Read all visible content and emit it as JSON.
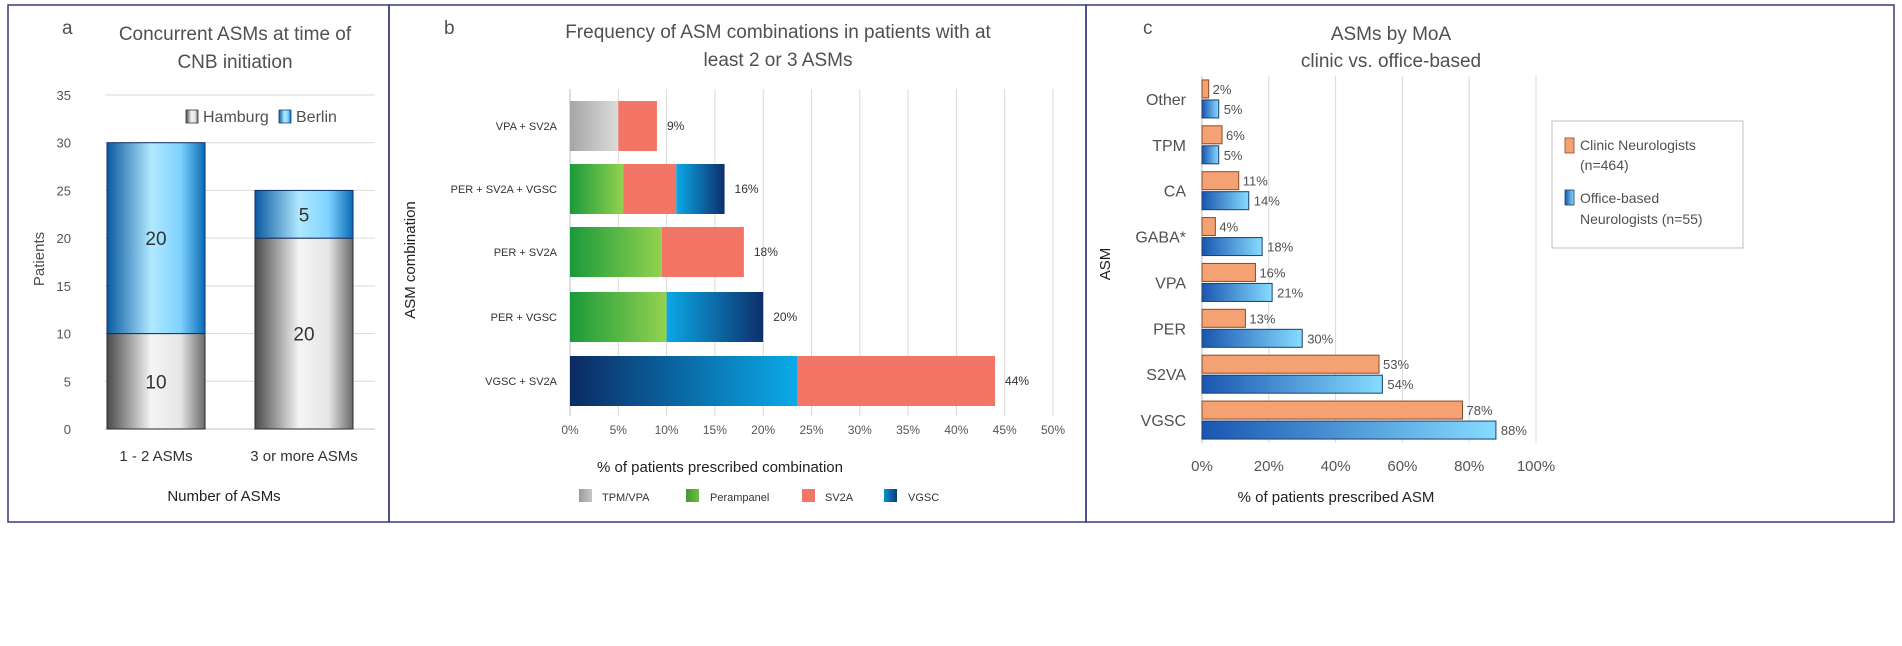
{
  "colors": {
    "frame": "#3a3a7a",
    "grid": "#d9d9d9",
    "axis_text": "#555555",
    "title_text": "#505050",
    "hamburg_dark": "#5a5a5a",
    "hamburg_light": "#f2f2f2",
    "berlin_dark": "#0a5aa0",
    "berlin_light": "#a8e4ff",
    "vgsc_dark": "#0d2f6b",
    "vgsc_light": "#0aa8e6",
    "perampanel_dark": "#1e9a3c",
    "perampanel_light": "#8fcf4f",
    "sv2a": "#f27565",
    "tpmvpa": "#b5b5b5",
    "clinic": "#f4a274",
    "clinic_edge": "#8a4a22",
    "office_dark": "#1a56b0",
    "office_light": "#7fd7ff"
  },
  "panels": {
    "a": {
      "letter": "a"
    },
    "b": {
      "letter": "b"
    },
    "c": {
      "letter": "c"
    }
  },
  "chart_data": [
    {
      "panel": "a",
      "type": "bar",
      "stacked": true,
      "title_lines": [
        "Concurrent ASMs at time of",
        "CNB initiation"
      ],
      "xlabel": "Number of ASMs",
      "ylabel": "Patients",
      "categories": [
        "1 - 2 ASMs",
        "3 or more ASMs"
      ],
      "series": [
        {
          "name": "Hamburg",
          "values": [
            10,
            20
          ],
          "labels": [
            "10",
            "20"
          ]
        },
        {
          "name": "Berlin",
          "values": [
            20,
            5
          ],
          "labels": [
            "20",
            "5"
          ]
        }
      ],
      "ylim": [
        0,
        35
      ],
      "yticks": [
        "0",
        "5",
        "10",
        "15",
        "20",
        "25",
        "30",
        "35"
      ],
      "legend": [
        "Hamburg",
        "Berlin"
      ],
      "grid": true
    },
    {
      "panel": "b",
      "type": "bar",
      "orientation": "horizontal",
      "stacked": true,
      "title_lines": [
        "Frequency of ASM combinations in patients with at",
        "least 2 or 3 ASMs"
      ],
      "xlabel": "% of patients prescribed combination",
      "ylabel": "ASM combination",
      "categories": [
        "VPA + SV2A",
        "PER + SV2A + VGSC",
        "PER + SV2A",
        "PER + VGSC",
        "VGSC + SV2A"
      ],
      "totals": [
        9,
        16,
        18,
        20,
        44
      ],
      "total_labels": [
        "9%",
        "16%",
        "18%",
        "20%",
        "44%"
      ],
      "segments": [
        [
          {
            "drug": "TPM/VPA",
            "value": 5
          },
          {
            "drug": "SV2A",
            "value": 4
          }
        ],
        [
          {
            "drug": "Perampanel",
            "value": 5.5
          },
          {
            "drug": "SV2A",
            "value": 5.5
          },
          {
            "drug": "VGSC",
            "value": 5
          }
        ],
        [
          {
            "drug": "Perampanel",
            "value": 9.5
          },
          {
            "drug": "SV2A",
            "value": 8.5
          }
        ],
        [
          {
            "drug": "Perampanel",
            "value": 10
          },
          {
            "drug": "VGSC",
            "value": 10
          }
        ],
        [
          {
            "drug": "VGSC",
            "value": 23.5
          },
          {
            "drug": "SV2A",
            "value": 20.5
          }
        ]
      ],
      "xlim": [
        0,
        50
      ],
      "xticks": [
        "0%",
        "5%",
        "10%",
        "15%",
        "20%",
        "25%",
        "30%",
        "35%",
        "40%",
        "45%",
        "50%"
      ],
      "legend": [
        "TPM/VPA",
        "Perampanel",
        "SV2A",
        "VGSC"
      ],
      "grid": true
    },
    {
      "panel": "c",
      "type": "bar",
      "orientation": "horizontal",
      "grouped": true,
      "title_lines": [
        "ASMs by MoA",
        "clinic vs. office-based"
      ],
      "xlabel": "% of patients prescribed ASM",
      "ylabel": "ASM",
      "categories": [
        "Other",
        "TPM",
        "CA",
        "GABA*",
        "VPA",
        "PER",
        "S2VA",
        "VGSC"
      ],
      "series": [
        {
          "name": "Clinic Neurologists (n=464)",
          "legend_lines": [
            "Clinic Neurologists",
            "(n=464)"
          ],
          "values": [
            2,
            6,
            11,
            4,
            16,
            13,
            53,
            78
          ],
          "labels": [
            "2%",
            "6%",
            "11%",
            "4%",
            "16%",
            "13%",
            "53%",
            "78%"
          ]
        },
        {
          "name": "Office-based Neurologists (n=55)",
          "legend_lines": [
            "Office-based",
            "Neurologists (n=55)"
          ],
          "values": [
            5,
            5,
            14,
            18,
            21,
            30,
            54,
            88
          ],
          "labels": [
            "5%",
            "5%",
            "14%",
            "18%",
            "21%",
            "30%",
            "54%",
            "88%"
          ]
        }
      ],
      "xlim": [
        0,
        100
      ],
      "xticks": [
        "0%",
        "20%",
        "40%",
        "60%",
        "80%",
        "100%"
      ],
      "grid": true
    }
  ]
}
